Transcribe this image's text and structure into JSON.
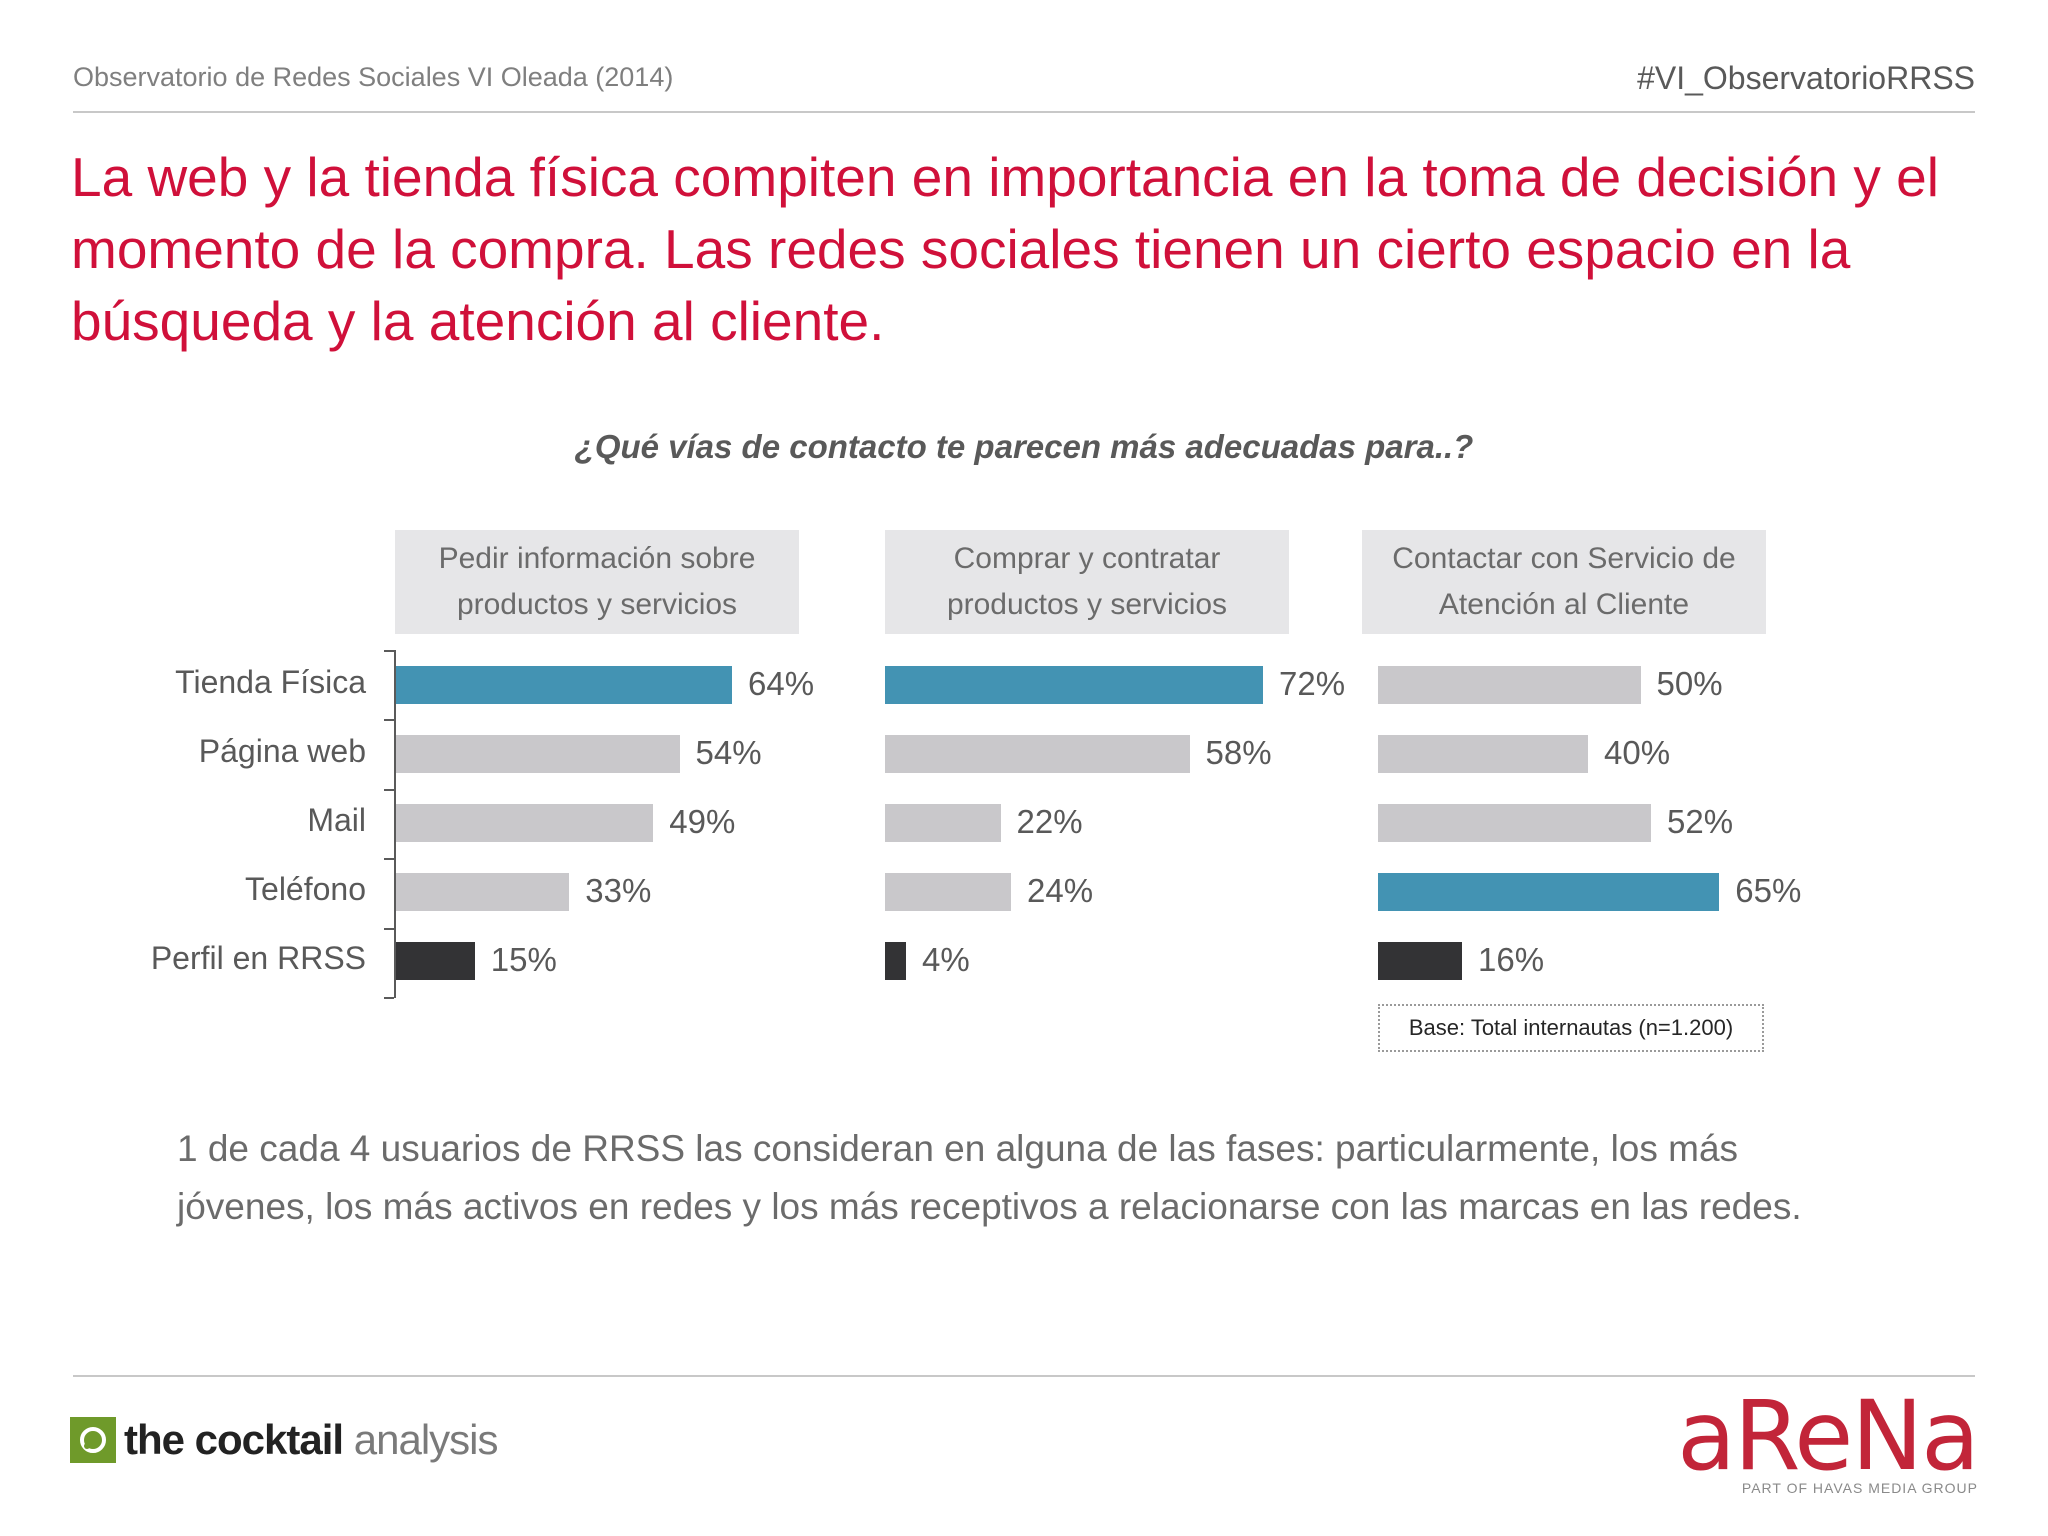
{
  "header": {
    "left": "Observatorio de Redes Sociales VI Oleada (2014)",
    "right": "#VI_ObservatorioRRSS"
  },
  "title": "La web y la tienda física compiten en importancia en la toma de decisión y el momento de la compra. Las redes sociales tienen un cierto espacio en la búsqueda y la atención al cliente.",
  "chart_data": {
    "type": "bar",
    "orientation": "horizontal",
    "title": "¿Qué vías de contacto te parecen más adecuadas para..?",
    "categories": [
      "Tienda Física",
      "Página web",
      "Mail",
      "Teléfono",
      "Perfil en RRSS"
    ],
    "unit": "%",
    "series": [
      {
        "name": "Pedir información sobre productos y servicios",
        "values": [
          64,
          54,
          49,
          33,
          15
        ]
      },
      {
        "name": "Comprar y contratar productos y servicios",
        "values": [
          72,
          58,
          22,
          24,
          4
        ]
      },
      {
        "name": "Contactar con Servicio de Atención al Cliente",
        "values": [
          50,
          40,
          52,
          65,
          16
        ]
      }
    ],
    "colors": {
      "highlight": "#4393b3",
      "default": "#c9c8cb",
      "rrss": "#333335"
    },
    "highlight_index": [
      0,
      0,
      3
    ],
    "base_note": "Base: Total internautas (n=1.200)",
    "grid": false
  },
  "note": "1 de cada 4 usuarios de RRSS las consideran en alguna de las fases: particularmente, los más jóvenes, los más activos en redes y los más receptivos a relacionarse con las marcas en las redes.",
  "footer": {
    "left_logo_bold": "the cocktail",
    "left_logo_light": "analysis",
    "right_logo": "aReNa",
    "right_logo_sub": "PART OF HAVAS MEDIA GROUP"
  }
}
